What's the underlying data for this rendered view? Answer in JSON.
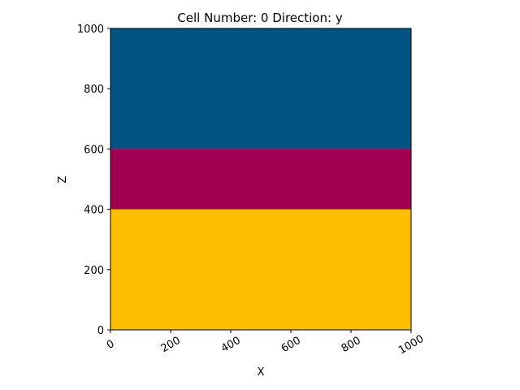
{
  "chart_data": {
    "type": "heatmap",
    "title": "Cell Number: 0 Direction: y",
    "xlabel": "X",
    "ylabel": "Z",
    "xlim": [
      0,
      1000
    ],
    "ylim": [
      0,
      1000
    ],
    "x_ticks": [
      0,
      200,
      400,
      600,
      800,
      1000
    ],
    "y_ticks": [
      0,
      200,
      400,
      600,
      800,
      1000
    ],
    "x_tick_rotation_deg": 30,
    "grid": false,
    "legend": "none",
    "layers": [
      {
        "z_min": 0,
        "z_max": 400,
        "x_min": 0,
        "x_max": 1000,
        "color": "#FFBE00"
      },
      {
        "z_min": 400,
        "z_max": 600,
        "x_min": 0,
        "x_max": 1000,
        "color": "#9F0052"
      },
      {
        "z_min": 600,
        "z_max": 1000,
        "x_min": 0,
        "x_max": 1000,
        "color": "#015482"
      }
    ]
  }
}
